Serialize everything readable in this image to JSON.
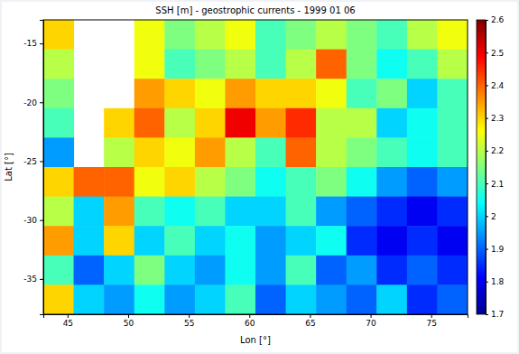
{
  "chart_data": {
    "type": "heatmap",
    "title": "SSH [m] - geostrophic currents - 1999 01 06",
    "x_label": "Lon [°]",
    "y_label": "Lat [°]",
    "x": [
      44.25,
      46.75,
      49.25,
      51.75,
      54.25,
      56.75,
      59.25,
      61.75,
      64.25,
      66.75,
      69.25,
      71.75,
      74.25,
      76.75
    ],
    "y": [
      -14.25,
      -16.75,
      -19.25,
      -21.75,
      -24.25,
      -26.75,
      -29.25,
      -31.75,
      -34.25,
      -36.75
    ],
    "z": [
      [
        2.3,
        null,
        null,
        2.25,
        2.15,
        2.2,
        2.25,
        2.1,
        2.15,
        2.2,
        2.15,
        2.1,
        2.2,
        2.25
      ],
      [
        2.2,
        null,
        null,
        2.25,
        2.1,
        2.15,
        2.2,
        2.1,
        2.2,
        2.4,
        2.15,
        2.05,
        2.1,
        2.2
      ],
      [
        2.15,
        null,
        null,
        2.35,
        2.3,
        2.25,
        2.35,
        2.3,
        2.3,
        2.25,
        2.1,
        2.15,
        2.0,
        2.1
      ],
      [
        2.1,
        null,
        2.3,
        2.4,
        2.2,
        2.3,
        2.5,
        2.35,
        2.45,
        2.2,
        2.2,
        2.0,
        2.05,
        2.1
      ],
      [
        1.95,
        null,
        2.2,
        2.3,
        2.25,
        2.35,
        2.2,
        2.1,
        2.4,
        2.2,
        2.15,
        2.1,
        2.05,
        2.1
      ],
      [
        2.3,
        2.4,
        2.4,
        2.25,
        2.3,
        2.2,
        2.15,
        2.05,
        2.1,
        2.15,
        2.05,
        1.95,
        1.9,
        1.95
      ],
      [
        2.2,
        2.0,
        2.35,
        2.1,
        2.05,
        2.1,
        2.0,
        2.0,
        2.1,
        1.95,
        1.9,
        1.85,
        1.8,
        1.85
      ],
      [
        2.35,
        2.0,
        2.3,
        2.0,
        2.1,
        2.0,
        2.05,
        1.95,
        2.0,
        2.05,
        1.85,
        1.8,
        1.85,
        1.8
      ],
      [
        2.1,
        1.9,
        2.0,
        2.15,
        2.0,
        1.95,
        2.05,
        1.95,
        2.1,
        1.9,
        1.95,
        1.85,
        1.9,
        1.85
      ],
      [
        2.3,
        2.0,
        1.95,
        2.05,
        1.95,
        2.0,
        2.1,
        1.9,
        2.0,
        1.95,
        1.9,
        2.0,
        1.85,
        1.9
      ]
    ],
    "xlim": [
      43,
      78
    ],
    "ylim": [
      -38,
      -13
    ],
    "xticks": [
      45,
      50,
      55,
      60,
      65,
      70,
      75
    ],
    "yticks": [
      -35,
      -30,
      -25,
      -20,
      -15
    ],
    "colorbar_range": [
      1.7,
      2.6
    ],
    "colorbar_ticks": [
      1.7,
      1.8,
      1.9,
      2,
      2.1,
      2.2,
      2.3,
      2.4,
      2.5,
      2.6
    ]
  }
}
